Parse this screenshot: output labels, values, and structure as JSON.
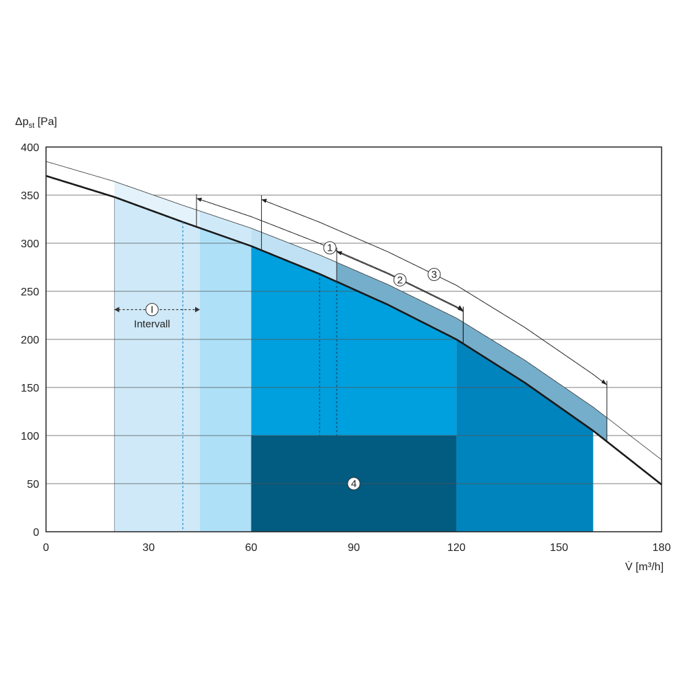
{
  "chart_data": {
    "type": "area",
    "ylabel": "Δp",
    "ylabel_sub": "st",
    "ylabel_unit": " [Pa]",
    "xlabel": "V̇ [m³/h]",
    "xlim": [
      0,
      180
    ],
    "ylim": [
      0,
      400
    ],
    "x_ticks": [
      0,
      30,
      60,
      90,
      120,
      150,
      180
    ],
    "y_ticks": [
      0,
      50,
      100,
      150,
      200,
      250,
      300,
      350,
      400
    ],
    "grid": "horizontal",
    "curve": {
      "x": [
        0,
        20,
        40,
        60,
        80,
        100,
        120,
        140,
        160,
        180
      ],
      "y": [
        370,
        348,
        322,
        297,
        268,
        236,
        200,
        155,
        105,
        49
      ]
    },
    "regions": [
      {
        "x0": 20,
        "x1": 45,
        "y_top": "curve",
        "color": "#cfe9f8"
      },
      {
        "x0": 45,
        "x1": 60,
        "y_top": "curve",
        "color": "#aee0f7"
      },
      {
        "x0": 60,
        "x1": 120,
        "y_top": "curve",
        "color": "#009fdd"
      },
      {
        "x0": 120,
        "x1": 160,
        "y_top": "curve",
        "color": "#0084bd"
      },
      {
        "x0": 60,
        "x1": 120,
        "y_top": 100,
        "color": "#025b80"
      }
    ],
    "annotations": [
      {
        "label": "1",
        "x_from": 44,
        "x_to": 122
      },
      {
        "label": "2",
        "x_from": 85,
        "x_to": 122
      },
      {
        "label": "3",
        "x_from": 63,
        "x_to": 164
      },
      {
        "label": "4",
        "x": 90,
        "y": 50
      },
      {
        "label": "I",
        "text": "Intervall",
        "x_from": 20,
        "x_to": 45,
        "y": 231
      }
    ],
    "colors": {
      "curve": "#1a1a1a",
      "band_light": "#e3f2fb",
      "band_mid": "#cfe9f8",
      "band_dark": "#74aecb",
      "grid": "#555555"
    }
  }
}
